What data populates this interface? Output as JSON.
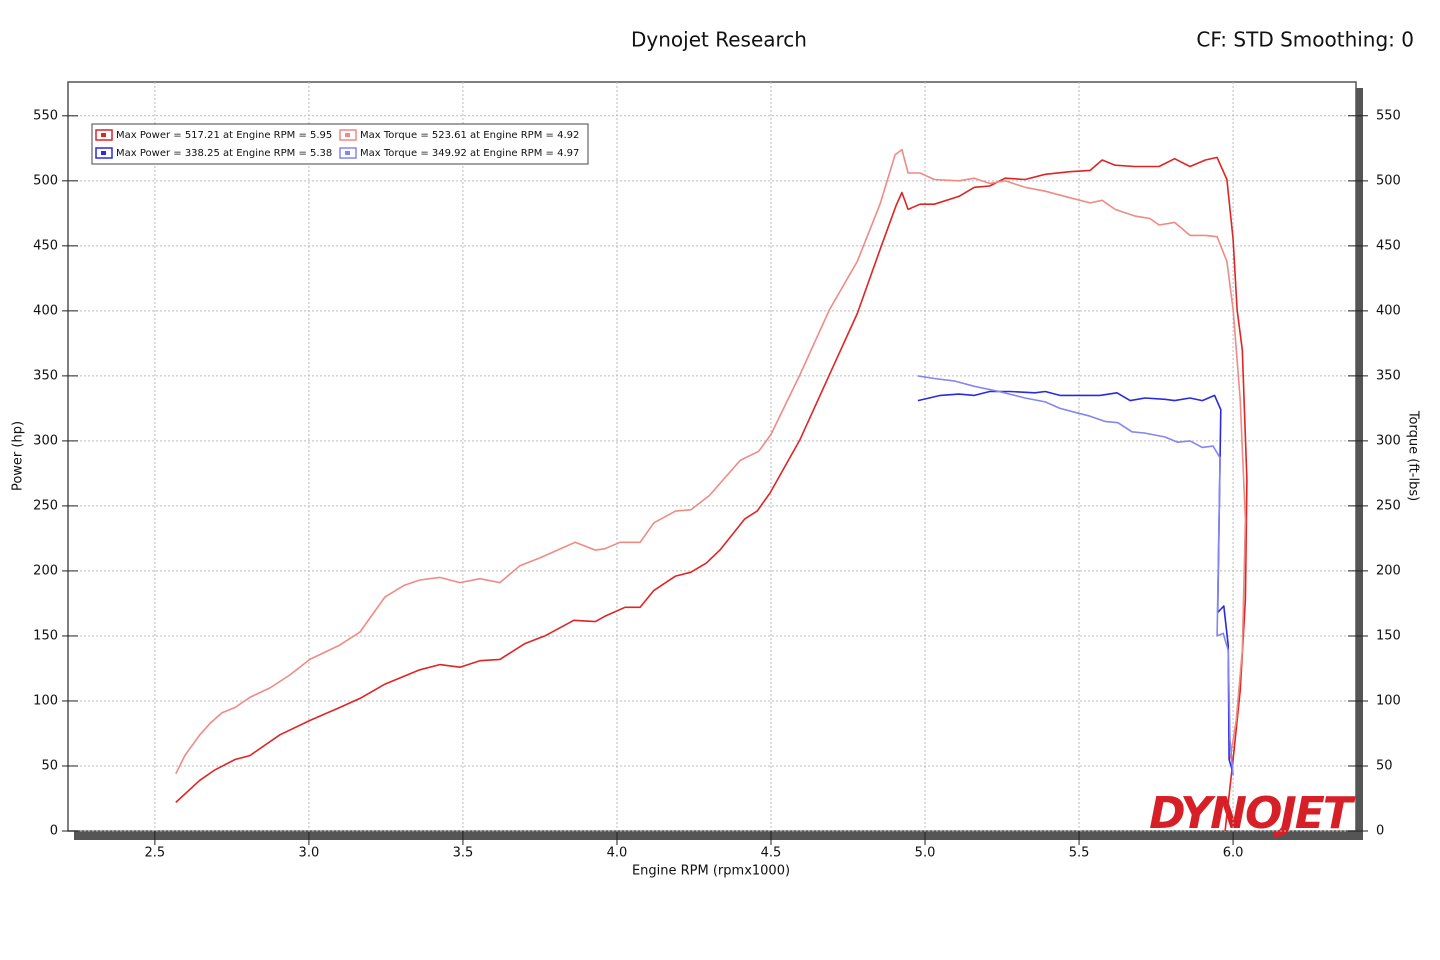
{
  "chart_data": {
    "type": "line",
    "title": "Dynojet Research",
    "subtitle": "CF: STD Smoothing: 0",
    "x_label": "Engine RPM (rpmx1000)",
    "y_label": "Power (hp)",
    "y2_label": "Torque (ft-lbs)",
    "logo": "DYNOJET",
    "xlim": [
      2.218,
      6.399
    ],
    "ylim": [
      0,
      576
    ],
    "y2lim": [
      0,
      576
    ],
    "xticks": [
      2.5,
      {
        "value": 3,
        "label": "3.0"
      },
      3.5,
      {
        "value": 4,
        "label": "4.0"
      },
      4.5,
      {
        "value": 5,
        "label": "5.0"
      },
      5.5,
      {
        "value": 6,
        "label": "6.0"
      }
    ],
    "yticks": [
      0,
      50,
      100,
      150,
      200,
      250,
      300,
      350,
      400,
      450,
      500,
      550
    ],
    "y2ticks": [
      0,
      50,
      100,
      150,
      200,
      250,
      300,
      350,
      400,
      450,
      500,
      550
    ],
    "grid": true,
    "legend": "upper left",
    "series": [
      {
        "name": "Max Power = 517.21 at Engine RPM = 5.95",
        "color": "#e02424",
        "axis": "y",
        "x": [
          2.568,
          2.646,
          2.695,
          2.76,
          2.808,
          2.906,
          3.003,
          3.1,
          3.166,
          3.247,
          3.36,
          3.425,
          3.49,
          3.555,
          3.62,
          3.7,
          3.766,
          3.86,
          3.93,
          3.96,
          4.026,
          4.075,
          4.12,
          4.19,
          4.24,
          4.29,
          4.334,
          4.415,
          4.455,
          4.497,
          4.594,
          4.69,
          4.78,
          4.854,
          4.906,
          4.925,
          4.945,
          4.984,
          5.03,
          5.11,
          5.16,
          5.21,
          5.26,
          5.325,
          5.39,
          5.47,
          5.536,
          5.575,
          5.617,
          5.68,
          5.73,
          5.76,
          5.81,
          5.86,
          5.91,
          5.948,
          5.98,
          6.0,
          6.013,
          6.03,
          6.045,
          6.04,
          6.023,
          6.0,
          5.974
        ],
        "values": [
          22,
          39,
          47,
          55,
          58,
          74,
          85,
          95,
          102,
          113,
          124,
          128,
          126,
          131,
          132,
          144,
          150,
          162,
          161,
          165,
          172,
          172,
          185,
          196,
          199,
          206,
          216,
          240,
          246,
          260,
          301,
          351,
          398,
          447,
          481,
          491,
          478,
          482,
          482,
          488,
          495,
          496,
          502,
          501,
          505,
          507,
          508,
          516,
          512,
          511,
          511,
          511,
          517,
          511,
          516,
          518,
          501,
          455,
          401,
          370,
          270,
          178,
          108,
          55,
          0
        ]
      },
      {
        "name": "Max Torque = 523.61 at Engine RPM = 4.92",
        "color": "#f08a84",
        "axis": "y2",
        "x": [
          2.568,
          2.597,
          2.646,
          2.68,
          2.718,
          2.76,
          2.81,
          2.873,
          2.938,
          3.003,
          3.1,
          3.166,
          3.247,
          3.31,
          3.36,
          3.425,
          3.49,
          3.555,
          3.62,
          3.685,
          3.75,
          3.864,
          3.93,
          3.96,
          4.01,
          4.075,
          4.12,
          4.19,
          4.24,
          4.3,
          4.4,
          4.46,
          4.5,
          4.594,
          4.69,
          4.78,
          4.854,
          4.903,
          4.925,
          4.945,
          4.984,
          5.03,
          5.11,
          5.16,
          5.21,
          5.26,
          5.325,
          5.39,
          5.47,
          5.536,
          5.575,
          5.617,
          5.68,
          5.73,
          5.76,
          5.81,
          5.86,
          5.91,
          5.948,
          5.98,
          6.0,
          6.023,
          6.04,
          6.03,
          6.01,
          5.99
        ],
        "values": [
          44,
          58,
          74,
          83,
          91,
          95,
          103,
          110,
          120,
          132,
          143,
          153,
          180,
          189,
          193,
          195,
          191,
          194,
          191,
          204,
          210,
          222,
          216,
          217,
          222,
          222,
          237,
          246,
          247,
          258,
          285,
          292,
          305,
          351,
          401,
          438,
          482,
          520,
          524,
          506,
          506,
          501,
          500,
          502,
          498,
          500,
          495,
          492,
          487,
          483,
          485,
          478,
          473,
          471,
          466,
          468,
          458,
          458,
          457,
          438,
          401,
          332,
          239,
          139,
          85,
          55
        ]
      },
      {
        "name": "Max Power = 338.25 at Engine RPM = 5.38",
        "color": "#2a2ae0",
        "axis": "y",
        "x": [
          4.977,
          5.05,
          5.11,
          5.16,
          5.21,
          5.276,
          5.357,
          5.39,
          5.438,
          5.503,
          5.568,
          5.623,
          5.666,
          5.714,
          5.779,
          5.81,
          5.86,
          5.9,
          5.94,
          5.96,
          5.95,
          5.97,
          5.984,
          5.987,
          5.997
        ],
        "values": [
          331,
          335,
          336,
          335,
          338,
          338,
          337,
          338,
          335,
          335,
          335,
          337,
          331,
          333,
          332,
          331,
          333,
          331,
          335,
          324,
          168,
          173,
          143,
          55,
          47
        ]
      },
      {
        "name": "Max Torque = 349.92 at Engine RPM = 4.97",
        "color": "#8585f2",
        "axis": "y2",
        "x": [
          4.977,
          5.03,
          5.097,
          5.16,
          5.24,
          5.325,
          5.39,
          5.438,
          5.487,
          5.536,
          5.584,
          5.626,
          5.672,
          5.714,
          5.779,
          5.82,
          5.86,
          5.9,
          5.935,
          5.958,
          5.948,
          5.968,
          5.984,
          5.99,
          6.0
        ],
        "values": [
          350,
          348,
          346,
          342,
          338,
          333,
          330,
          325,
          322,
          319,
          315,
          314,
          307,
          306,
          303,
          299,
          300,
          295,
          296,
          287,
          150,
          152,
          139,
          70,
          43
        ]
      }
    ]
  }
}
